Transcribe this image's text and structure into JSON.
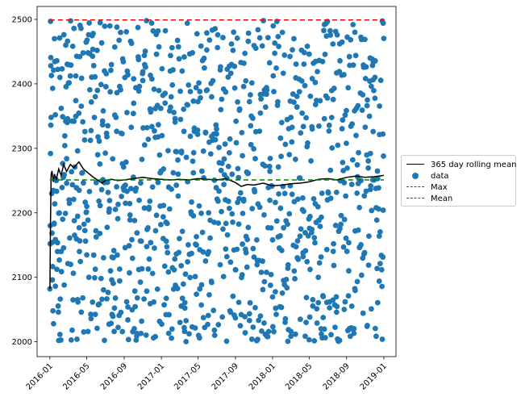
{
  "chart_data": {
    "type": "scatter",
    "title": "",
    "xlabel": "",
    "ylabel": "",
    "x_ticks": [
      "2016-01",
      "2016-05",
      "2016-09",
      "2017-01",
      "2017-05",
      "2017-09",
      "2018-01",
      "2018-05",
      "2018-09",
      "2019-01"
    ],
    "x_tick_dates": [
      "2016-01-01",
      "2016-05-01",
      "2016-09-01",
      "2017-01-01",
      "2017-05-01",
      "2017-09-01",
      "2018-01-01",
      "2018-05-01",
      "2018-09-01",
      "2019-01-01"
    ],
    "xlim": [
      "2015-11-20",
      "2019-02-10"
    ],
    "y_ticks": [
      2000,
      2100,
      2200,
      2300,
      2400,
      2500
    ],
    "ylim": [
      1977,
      2520
    ],
    "grid": false,
    "legend_position": "center-right (outside plot)",
    "series": [
      {
        "name": "365 day rolling mean",
        "kind": "line",
        "color": "#000000",
        "points": [
          [
            "2016-01-01",
            2082
          ],
          [
            "2016-01-03",
            2182
          ],
          [
            "2016-01-05",
            2260
          ],
          [
            "2016-01-08",
            2265
          ],
          [
            "2016-01-12",
            2248
          ],
          [
            "2016-01-16",
            2260
          ],
          [
            "2016-01-22",
            2252
          ],
          [
            "2016-01-30",
            2268
          ],
          [
            "2016-02-07",
            2258
          ],
          [
            "2016-02-15",
            2275
          ],
          [
            "2016-02-25",
            2264
          ],
          [
            "2016-03-08",
            2275
          ],
          [
            "2016-03-20",
            2270
          ],
          [
            "2016-04-05",
            2279
          ],
          [
            "2016-04-20",
            2268
          ],
          [
            "2016-05-05",
            2262
          ],
          [
            "2016-05-20",
            2256
          ],
          [
            "2016-06-05",
            2251
          ],
          [
            "2016-06-20",
            2246
          ],
          [
            "2016-07-01",
            2250
          ],
          [
            "2016-07-20",
            2252
          ],
          [
            "2016-08-10",
            2250
          ],
          [
            "2016-09-01",
            2251
          ],
          [
            "2016-10-01",
            2253
          ],
          [
            "2016-11-01",
            2255
          ],
          [
            "2016-12-01",
            2253
          ],
          [
            "2017-01-01",
            2252
          ],
          [
            "2017-02-01",
            2251
          ],
          [
            "2017-03-01",
            2252
          ],
          [
            "2017-04-01",
            2251
          ],
          [
            "2017-05-01",
            2253
          ],
          [
            "2017-06-01",
            2252
          ],
          [
            "2017-07-01",
            2251
          ],
          [
            "2017-08-01",
            2253
          ],
          [
            "2017-09-01",
            2247
          ],
          [
            "2017-09-20",
            2241
          ],
          [
            "2017-10-10",
            2244
          ],
          [
            "2017-11-01",
            2243
          ],
          [
            "2017-12-01",
            2246
          ],
          [
            "2018-01-01",
            2242
          ],
          [
            "2018-02-01",
            2243
          ],
          [
            "2018-03-01",
            2245
          ],
          [
            "2018-04-01",
            2246
          ],
          [
            "2018-05-01",
            2248
          ],
          [
            "2018-06-01",
            2252
          ],
          [
            "2018-07-01",
            2253
          ],
          [
            "2018-08-01",
            2251
          ],
          [
            "2018-09-01",
            2255
          ],
          [
            "2018-10-01",
            2257
          ],
          [
            "2018-11-01",
            2255
          ],
          [
            "2018-12-01",
            2256
          ],
          [
            "2019-01-01",
            2258
          ]
        ]
      },
      {
        "name": "data",
        "kind": "scatter",
        "color": "#1f77b4",
        "marker": "circle",
        "count": 1096,
        "points": [
          [
            "2016-01-01",
            2082
          ],
          [
            "2016-01-02",
            2180
          ],
          [
            "2016-01-03",
            2292
          ],
          [
            "2016-01-04",
            2428
          ],
          [
            "2016-01-05",
            2348
          ],
          [
            "2016-01-07",
            2230
          ],
          [
            "2016-01-09",
            2154
          ],
          [
            "2016-01-11",
            2048
          ],
          [
            "2016-01-13",
            2028
          ],
          [
            "2016-01-16",
            2470
          ],
          [
            "2016-01-19",
            2352
          ],
          [
            "2016-01-22",
            2250
          ],
          [
            "2016-01-26",
            2140
          ],
          [
            "2016-01-30",
            2002
          ],
          [
            "2016-02-03",
            2410
          ],
          [
            "2016-02-07",
            2362
          ],
          [
            "2016-02-12",
            2190
          ],
          [
            "2016-02-17",
            2088
          ],
          [
            "2016-02-22",
            2460
          ],
          [
            "2016-02-27",
            2340
          ],
          [
            "2016-03-04",
            2220
          ],
          [
            "2016-03-09",
            2120
          ],
          [
            "2016-03-14",
            2018
          ],
          [
            "2016-03-20",
            2486
          ],
          [
            "2016-03-26",
            2374
          ],
          [
            "2016-04-01",
            2296
          ],
          [
            "2016-04-07",
            2140
          ],
          [
            "2016-04-13",
            2046
          ],
          [
            "2016-04-19",
            2448
          ],
          [
            "2016-04-25",
            2326
          ],
          [
            "2016-05-01",
            2210
          ],
          [
            "2016-05-08",
            2100
          ],
          [
            "2016-05-15",
            2036
          ],
          [
            "2016-05-22",
            2478
          ],
          [
            "2016-05-29",
            2380
          ],
          [
            "2016-06-06",
            2290
          ],
          [
            "2016-06-13",
            2168
          ],
          [
            "2016-06-20",
            2066
          ],
          [
            "2016-06-28",
            2420
          ],
          [
            "2016-07-06",
            2318
          ],
          [
            "2016-07-14",
            2206
          ],
          [
            "2016-07-22",
            2096
          ],
          [
            "2016-07-30",
            2016
          ],
          [
            "2016-08-08",
            2488
          ],
          [
            "2016-08-17",
            2396
          ],
          [
            "2016-08-26",
            2276
          ],
          [
            "2016-09-04",
            2146
          ],
          [
            "2016-09-13",
            2054
          ],
          [
            "2016-09-22",
            2466
          ],
          [
            "2016-10-01",
            2354
          ],
          [
            "2016-10-10",
            2238
          ],
          [
            "2016-10-19",
            2112
          ],
          [
            "2016-10-28",
            2032
          ],
          [
            "2016-11-06",
            2444
          ],
          [
            "2016-11-15",
            2332
          ],
          [
            "2016-11-24",
            2218
          ],
          [
            "2016-12-03",
            2106
          ],
          [
            "2016-12-12",
            2008
          ],
          [
            "2016-12-21",
            2482
          ],
          [
            "2016-12-30",
            2362
          ],
          [
            "2017-01-08",
            2268
          ],
          [
            "2017-01-17",
            2156
          ],
          [
            "2017-01-26",
            2042
          ],
          [
            "2017-02-05",
            2456
          ],
          [
            "2017-02-15",
            2346
          ],
          [
            "2017-02-25",
            2226
          ],
          [
            "2017-03-07",
            2118
          ],
          [
            "2017-03-17",
            2022
          ],
          [
            "2017-03-27",
            2494
          ],
          [
            "2017-04-06",
            2388
          ],
          [
            "2017-04-16",
            2262
          ],
          [
            "2017-04-26",
            2150
          ],
          [
            "2017-05-06",
            2006
          ],
          [
            "2017-05-16",
            2436
          ],
          [
            "2017-05-26",
            2324
          ],
          [
            "2017-06-05",
            2200
          ],
          [
            "2017-06-15",
            2092
          ],
          [
            "2017-06-25",
            2010
          ],
          [
            "2017-07-05",
            2476
          ],
          [
            "2017-07-15",
            2360
          ],
          [
            "2017-07-25",
            2244
          ],
          [
            "2017-08-04",
            2132
          ],
          [
            "2017-08-14",
            2048
          ],
          [
            "2017-08-24",
            2452
          ],
          [
            "2017-09-03",
            2342
          ],
          [
            "2017-09-13",
            2222
          ],
          [
            "2017-09-23",
            2104
          ],
          [
            "2017-10-03",
            2014
          ],
          [
            "2017-10-13",
            2466
          ],
          [
            "2017-10-23",
            2350
          ],
          [
            "2017-11-02",
            2236
          ],
          [
            "2017-11-12",
            2126
          ],
          [
            "2017-11-22",
            2040
          ],
          [
            "2017-12-02",
            2498
          ],
          [
            "2017-12-12",
            2384
          ],
          [
            "2017-12-22",
            2272
          ],
          [
            "2018-01-01",
            2158
          ],
          [
            "2018-01-11",
            2052
          ],
          [
            "2018-01-21",
            2458
          ],
          [
            "2018-01-31",
            2340
          ],
          [
            "2018-02-10",
            2230
          ],
          [
            "2018-02-20",
            2114
          ],
          [
            "2018-03-02",
            2016
          ],
          [
            "2018-03-12",
            2470
          ],
          [
            "2018-03-22",
            2364
          ],
          [
            "2018-04-01",
            2254
          ],
          [
            "2018-04-11",
            2138
          ],
          [
            "2018-04-21",
            2030
          ],
          [
            "2018-05-01",
            2446
          ],
          [
            "2018-05-11",
            2330
          ],
          [
            "2018-05-21",
            2214
          ],
          [
            "2018-05-31",
            2100
          ],
          [
            "2018-06-10",
            2012
          ],
          [
            "2018-06-20",
            2492
          ],
          [
            "2018-06-30",
            2378
          ],
          [
            "2018-07-10",
            2266
          ],
          [
            "2018-07-20",
            2152
          ],
          [
            "2018-07-30",
            2046
          ],
          [
            "2018-08-09",
            2462
          ],
          [
            "2018-08-19",
            2344
          ],
          [
            "2018-08-29",
            2226
          ],
          [
            "2018-09-08",
            2110
          ],
          [
            "2018-09-18",
            2020
          ],
          [
            "2018-09-28",
            2480
          ],
          [
            "2018-10-08",
            2366
          ],
          [
            "2018-10-18",
            2250
          ],
          [
            "2018-10-28",
            2136
          ],
          [
            "2018-11-07",
            2024
          ],
          [
            "2018-11-17",
            2440
          ],
          [
            "2018-11-27",
            2326
          ],
          [
            "2018-12-07",
            2208
          ],
          [
            "2018-12-17",
            2094
          ],
          [
            "2018-12-27",
            2004
          ],
          [
            "2018-12-30",
            2494
          ],
          [
            "2018-12-31",
            2288
          ]
        ]
      },
      {
        "name": "Max",
        "kind": "hline",
        "style": "dashed",
        "color": "#ff0000",
        "y": 2499,
        "x_range": [
          "2016-01-01",
          "2019-01-01"
        ]
      },
      {
        "name": "Mean",
        "kind": "hline",
        "style": "dashed",
        "color": "#008000",
        "y": 2251,
        "x_range": [
          "2016-01-01",
          "2019-01-01"
        ]
      }
    ]
  },
  "legend": {
    "items": [
      {
        "label": "365 day rolling mean",
        "symbol": "line",
        "color": "#000000"
      },
      {
        "label": "data",
        "symbol": "dot",
        "color": "#1f77b4"
      },
      {
        "label": "Max",
        "symbol": "dashed",
        "color": "#ff0000"
      },
      {
        "label": "Mean",
        "symbol": "dashed",
        "color": "#008000"
      }
    ]
  }
}
